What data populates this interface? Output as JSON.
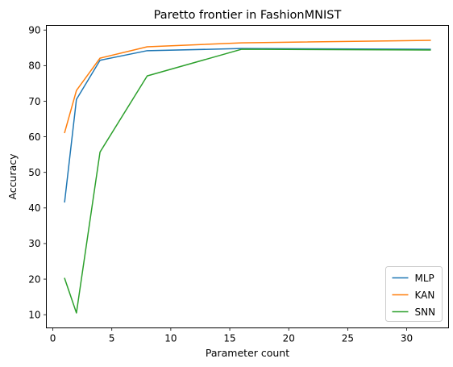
{
  "chart_data": {
    "type": "line",
    "title": "Paretto frontier in FashionMNIST",
    "xlabel": "Parameter count",
    "ylabel": "Accuracy",
    "xlim": [
      -0.55,
      33.55
    ],
    "ylim": [
      6.3,
      91.3
    ],
    "xticks": [
      0,
      5,
      10,
      15,
      20,
      25,
      30
    ],
    "yticks": [
      10,
      20,
      30,
      40,
      50,
      60,
      70,
      80,
      90
    ],
    "grid": false,
    "legend_position": "lower right",
    "series": [
      {
        "name": "MLP",
        "color": "#1f77b4",
        "x": [
          1,
          2,
          4,
          8,
          16,
          32
        ],
        "y": [
          41.7,
          70.5,
          81.5,
          84.2,
          84.8,
          84.6
        ]
      },
      {
        "name": "KAN",
        "color": "#ff7f0e",
        "x": [
          1,
          2,
          4,
          8,
          16,
          32
        ],
        "y": [
          61.2,
          73.0,
          82.1,
          85.3,
          86.4,
          87.1
        ]
      },
      {
        "name": "SNN",
        "color": "#2ca02c",
        "x": [
          1,
          2,
          4,
          8,
          16,
          32
        ],
        "y": [
          20.2,
          10.5,
          55.7,
          77.1,
          84.6,
          84.4
        ]
      }
    ]
  }
}
